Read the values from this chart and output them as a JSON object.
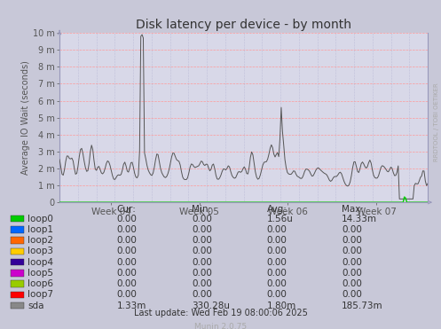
{
  "title": "Disk latency per device - by month",
  "ylabel": "Average IO Wait (seconds)",
  "watermark": "RRDTOOL / TOBI OETIKER",
  "munin_version": "Munin 2.0.75",
  "last_update": "Last update: Wed Feb 19 08:00:06 2025",
  "fig_bg_color": "#c8c8d8",
  "plot_bg_color": "#d8d8e8",
  "grid_color_h": "#ff9999",
  "grid_color_v": "#aaaacc",
  "border_color": "#aaaaaa",
  "axis_label_color": "#555555",
  "title_color": "#333333",
  "ytick_labels": [
    "0",
    "1 m",
    "2 m",
    "3 m",
    "4 m",
    "5 m",
    "6 m",
    "7 m",
    "8 m",
    "9 m",
    "10 m"
  ],
  "ytick_values": [
    0,
    0.001,
    0.002,
    0.003,
    0.004,
    0.005,
    0.006,
    0.007,
    0.008,
    0.009,
    0.01
  ],
  "ylim": [
    0,
    0.01
  ],
  "xtick_labels": [
    "Week 04",
    "Week 05",
    "Week 06",
    "Week 07"
  ],
  "legend_items": [
    {
      "label": "loop0",
      "color": "#00cc00"
    },
    {
      "label": "loop1",
      "color": "#0066ff"
    },
    {
      "label": "loop2",
      "color": "#ff6600"
    },
    {
      "label": "loop3",
      "color": "#ffcc00"
    },
    {
      "label": "loop4",
      "color": "#330099"
    },
    {
      "label": "loop5",
      "color": "#cc00cc"
    },
    {
      "label": "loop6",
      "color": "#99cc00"
    },
    {
      "label": "loop7",
      "color": "#ff0000"
    },
    {
      "label": "sda",
      "color": "#888888"
    }
  ],
  "table_header": [
    "",
    "Cur:",
    "Min:",
    "Avg:",
    "Max:"
  ],
  "table_data": [
    [
      "loop0",
      "0.00",
      "0.00",
      "1.56u",
      "14.33m"
    ],
    [
      "loop1",
      "0.00",
      "0.00",
      "0.00",
      "0.00"
    ],
    [
      "loop2",
      "0.00",
      "0.00",
      "0.00",
      "0.00"
    ],
    [
      "loop3",
      "0.00",
      "0.00",
      "0.00",
      "0.00"
    ],
    [
      "loop4",
      "0.00",
      "0.00",
      "0.00",
      "0.00"
    ],
    [
      "loop5",
      "0.00",
      "0.00",
      "0.00",
      "0.00"
    ],
    [
      "loop6",
      "0.00",
      "0.00",
      "0.00",
      "0.00"
    ],
    [
      "loop7",
      "0.00",
      "0.00",
      "0.00",
      "0.00"
    ],
    [
      "sda",
      "1.33m",
      "330.28u",
      "1.80m",
      "185.73m"
    ]
  ],
  "sda_line_color": "#555555",
  "loop0_spike_color": "#00cc00",
  "arrow_color": "#9999bb",
  "zero_line_color": "#cc3333"
}
